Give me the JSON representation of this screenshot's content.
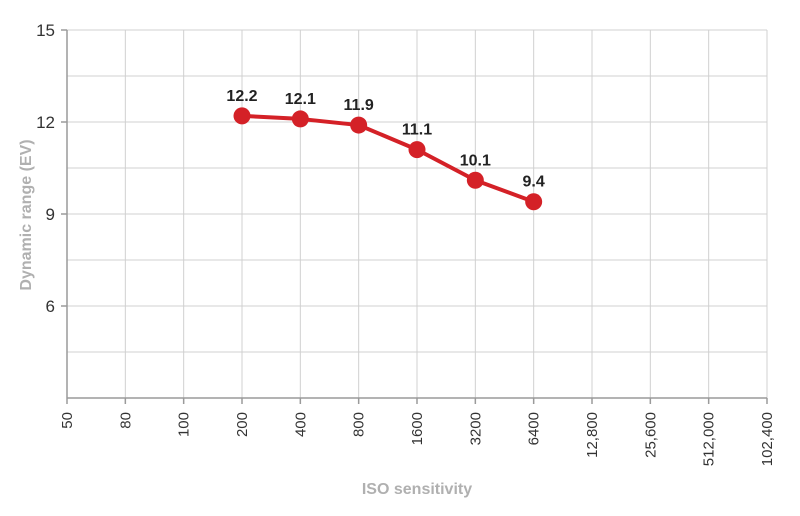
{
  "chart_data": {
    "type": "line",
    "title": "",
    "xlabel": "ISO sensitivity",
    "ylabel": "Dynamic range (EV)",
    "categories": [
      "50",
      "80",
      "100",
      "200",
      "400",
      "800",
      "1600",
      "3200",
      "6400",
      "12,800",
      "25,600",
      "512,000",
      "102,400"
    ],
    "ylim": [
      3,
      15
    ],
    "yticks": [
      6,
      9,
      12,
      15
    ],
    "grid": true,
    "series": [
      {
        "x": [
          "200",
          "400",
          "800",
          "1600",
          "3200",
          "6400"
        ],
        "values": [
          12.2,
          12.1,
          11.9,
          11.1,
          10.1,
          9.4
        ],
        "labels": [
          "12.2",
          "12.1",
          "11.9",
          "11.1",
          "10.1",
          "9.4"
        ],
        "color": "#d42127"
      }
    ]
  },
  "colors": {
    "grid": "#d0d0d0",
    "axis": "#9a9a9a",
    "line": "#d42127"
  }
}
